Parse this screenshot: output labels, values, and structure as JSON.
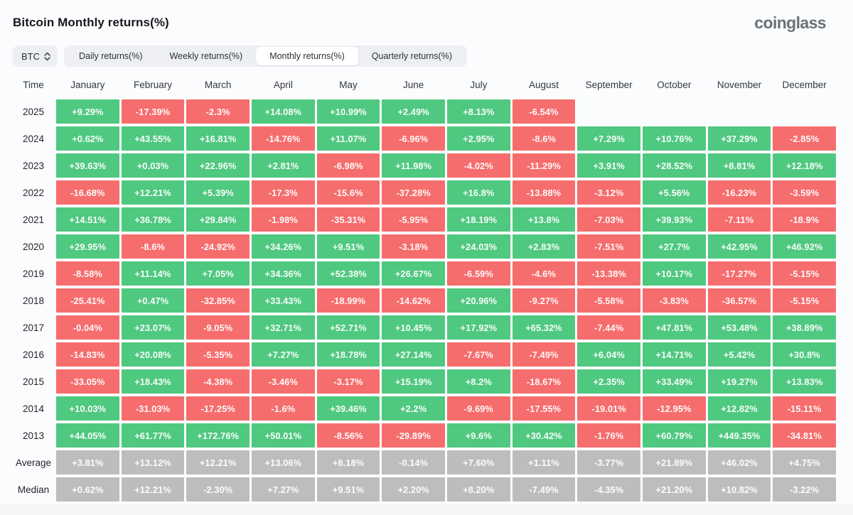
{
  "page": {
    "title": "Bitcoin Monthly returns(%)",
    "logo": "coinglass"
  },
  "controls": {
    "symbol_select": {
      "value": "BTC"
    },
    "tabs": [
      {
        "label": "Daily returns(%)",
        "active": false
      },
      {
        "label": "Weekly returns(%)",
        "active": false
      },
      {
        "label": "Monthly returns(%)",
        "active": true
      },
      {
        "label": "Quarterly returns(%)",
        "active": false
      }
    ]
  },
  "colors": {
    "positive": "#4fc880",
    "negative": "#f66d6d",
    "neutral": "#bdbdbd"
  },
  "chart_data": {
    "type": "heatmap",
    "title": "Bitcoin Monthly returns(%)",
    "columns": [
      "Time",
      "January",
      "February",
      "March",
      "April",
      "May",
      "June",
      "July",
      "August",
      "September",
      "October",
      "November",
      "December"
    ],
    "rows": [
      {
        "label": "2025",
        "type": "year",
        "values": [
          "+9.29%",
          "-17.39%",
          "-2.3%",
          "+14.08%",
          "+10.99%",
          "+2.49%",
          "+8.13%",
          "-6.54%",
          "",
          "",
          "",
          ""
        ]
      },
      {
        "label": "2024",
        "type": "year",
        "values": [
          "+0.62%",
          "+43.55%",
          "+16.81%",
          "-14.76%",
          "+11.07%",
          "-6.96%",
          "+2.95%",
          "-8.6%",
          "+7.29%",
          "+10.76%",
          "+37.29%",
          "-2.85%"
        ]
      },
      {
        "label": "2023",
        "type": "year",
        "values": [
          "+39.63%",
          "+0.03%",
          "+22.96%",
          "+2.81%",
          "-6.98%",
          "+11.98%",
          "-4.02%",
          "-11.29%",
          "+3.91%",
          "+28.52%",
          "+8.81%",
          "+12.18%"
        ]
      },
      {
        "label": "2022",
        "type": "year",
        "values": [
          "-16.68%",
          "+12.21%",
          "+5.39%",
          "-17.3%",
          "-15.6%",
          "-37.28%",
          "+16.8%",
          "-13.88%",
          "-3.12%",
          "+5.56%",
          "-16.23%",
          "-3.59%"
        ]
      },
      {
        "label": "2021",
        "type": "year",
        "values": [
          "+14.51%",
          "+36.78%",
          "+29.84%",
          "-1.98%",
          "-35.31%",
          "-5.95%",
          "+18.19%",
          "+13.8%",
          "-7.03%",
          "+39.93%",
          "-7.11%",
          "-18.9%"
        ]
      },
      {
        "label": "2020",
        "type": "year",
        "values": [
          "+29.95%",
          "-8.6%",
          "-24.92%",
          "+34.26%",
          "+9.51%",
          "-3.18%",
          "+24.03%",
          "+2.83%",
          "-7.51%",
          "+27.7%",
          "+42.95%",
          "+46.92%"
        ]
      },
      {
        "label": "2019",
        "type": "year",
        "values": [
          "-8.58%",
          "+11.14%",
          "+7.05%",
          "+34.36%",
          "+52.38%",
          "+26.67%",
          "-6.59%",
          "-4.6%",
          "-13.38%",
          "+10.17%",
          "-17.27%",
          "-5.15%"
        ]
      },
      {
        "label": "2018",
        "type": "year",
        "values": [
          "-25.41%",
          "+0.47%",
          "-32.85%",
          "+33.43%",
          "-18.99%",
          "-14.62%",
          "+20.96%",
          "-9.27%",
          "-5.58%",
          "-3.83%",
          "-36.57%",
          "-5.15%"
        ]
      },
      {
        "label": "2017",
        "type": "year",
        "values": [
          "-0.04%",
          "+23.07%",
          "-9.05%",
          "+32.71%",
          "+52.71%",
          "+10.45%",
          "+17.92%",
          "+65.32%",
          "-7.44%",
          "+47.81%",
          "+53.48%",
          "+38.89%"
        ]
      },
      {
        "label": "2016",
        "type": "year",
        "values": [
          "-14.83%",
          "+20.08%",
          "-5.35%",
          "+7.27%",
          "+18.78%",
          "+27.14%",
          "-7.67%",
          "-7.49%",
          "+6.04%",
          "+14.71%",
          "+5.42%",
          "+30.8%"
        ]
      },
      {
        "label": "2015",
        "type": "year",
        "values": [
          "-33.05%",
          "+18.43%",
          "-4.38%",
          "-3.46%",
          "-3.17%",
          "+15.19%",
          "+8.2%",
          "-18.67%",
          "+2.35%",
          "+33.49%",
          "+19.27%",
          "+13.83%"
        ]
      },
      {
        "label": "2014",
        "type": "year",
        "values": [
          "+10.03%",
          "-31.03%",
          "-17.25%",
          "-1.6%",
          "+39.46%",
          "+2.2%",
          "-9.69%",
          "-17.55%",
          "-19.01%",
          "-12.95%",
          "+12.82%",
          "-15.11%"
        ]
      },
      {
        "label": "2013",
        "type": "year",
        "values": [
          "+44.05%",
          "+61.77%",
          "+172.76%",
          "+50.01%",
          "-8.56%",
          "-29.89%",
          "+9.6%",
          "+30.42%",
          "-1.76%",
          "+60.79%",
          "+449.35%",
          "-34.81%"
        ]
      },
      {
        "label": "Average",
        "type": "summary",
        "values": [
          "+3.81%",
          "+13.12%",
          "+12.21%",
          "+13.06%",
          "+8.18%",
          "-0.14%",
          "+7.60%",
          "+1.11%",
          "-3.77%",
          "+21.89%",
          "+46.02%",
          "+4.75%"
        ]
      },
      {
        "label": "Median",
        "type": "summary",
        "values": [
          "+0.62%",
          "+12.21%",
          "-2.30%",
          "+7.27%",
          "+9.51%",
          "+2.20%",
          "+8.20%",
          "-7.49%",
          "-4.35%",
          "+21.20%",
          "+10.82%",
          "-3.22%"
        ]
      }
    ]
  }
}
